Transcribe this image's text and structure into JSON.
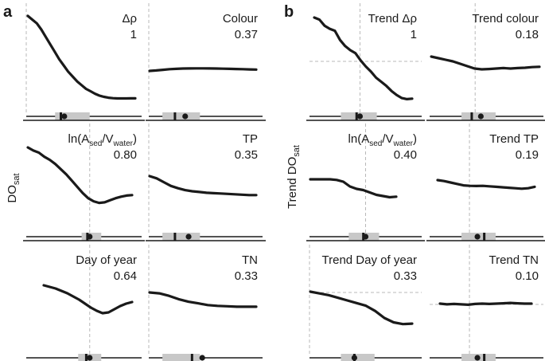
{
  "chart_data": {
    "type": "line",
    "panels": [
      {
        "label": "a",
        "ylabel_main": "DO",
        "ylabel_sub": "sat",
        "ylabel_pre": "",
        "subplots": [
          {
            "id": "a1",
            "title_main": "Δρ",
            "value": "1",
            "curve": [
              0,
              -0.3,
              -0.6,
              -1.1,
              -1.7,
              -2.3,
              -2.9,
              -3.5,
              -4.0,
              -4.5,
              -4.9,
              -5.3,
              -5.6,
              -5.9,
              -6.1,
              -6.3,
              -6.45,
              -6.55,
              -6.62,
              -6.66,
              -6.68,
              -6.68,
              -6.68,
              -6.67,
              -6.67
            ],
            "vguide": 0.0,
            "hguide": null,
            "box": [
              0.25,
              0.55
            ],
            "median": 0.3,
            "mean": 0.33
          },
          {
            "id": "a2",
            "title_main": "Colour",
            "value": "0.37",
            "curve": [
              0,
              0.05,
              0.12,
              0.18,
              0.22,
              0.25,
              0.26,
              0.27,
              0.27,
              0.26,
              0.25,
              0.23,
              0.22,
              0.2,
              0.18,
              0.16,
              0.14
            ],
            "vguide": 0.0,
            "hguide": null,
            "box": [
              0.12,
              0.45
            ],
            "median": 0.23,
            "mean": 0.32
          },
          {
            "id": "a3",
            "title_main": "ln(A",
            "sub1": "sed",
            "mid": "/V",
            "sub2": "water",
            "close": ")",
            "value": "0.80",
            "curve": [
              0,
              -0.3,
              -0.5,
              -0.9,
              -1.2,
              -1.6,
              -2.1,
              -2.6,
              -3.2,
              -3.8,
              -4.4,
              -4.9,
              -5.2,
              -5.35,
              -5.3,
              -5.1,
              -4.9,
              -4.75,
              -4.65,
              -4.6
            ],
            "vguide": 0.55,
            "hguide": null,
            "box": [
              0.48,
              0.65
            ],
            "median": 0.53,
            "mean": 0.55
          },
          {
            "id": "a4",
            "title_main": "TP",
            "value": "0.35",
            "curve": [
              0,
              -0.3,
              -0.8,
              -1.3,
              -1.6,
              -1.85,
              -2.0,
              -2.1,
              -2.2,
              -2.25,
              -2.3,
              -2.35,
              -2.4,
              -2.45,
              -2.5,
              -2.5
            ],
            "vguide": 0.0,
            "hguide": null,
            "box": [
              0.12,
              0.45
            ],
            "median": 0.23,
            "mean": 0.35
          },
          {
            "id": "a5",
            "title_main": "Day of year",
            "value": "0.64",
            "curve": [
              0,
              -0.2,
              -0.4,
              -0.7,
              -1.0,
              -1.4,
              -1.8,
              -2.3,
              -2.8,
              -3.2,
              -3.5,
              -3.4,
              -3.0,
              -2.6,
              -2.3,
              -2.1
            ],
            "vguide": 0.55,
            "hguide": null,
            "box": [
              0.45,
              0.65
            ],
            "median": 0.52,
            "mean": 0.55
          },
          {
            "id": "a6",
            "title_main": "TN",
            "value": "0.33",
            "curve": [
              0,
              -0.1,
              -0.4,
              -0.8,
              -1.1,
              -1.3,
              -1.5,
              -1.6,
              -1.65,
              -1.7,
              -1.7,
              -1.7
            ],
            "vguide": 0.0,
            "hguide": null,
            "box": [
              0.12,
              0.45
            ],
            "median": 0.38,
            "mean": 0.47
          }
        ]
      },
      {
        "label": "b",
        "ylabel_main": "Trend DO",
        "ylabel_sub": "sat",
        "ylabel_pre": "",
        "subplots": [
          {
            "id": "b1",
            "title_main": "Trend Δρ",
            "value": "1",
            "curve": [
              0,
              -0.2,
              -0.8,
              -1.1,
              -1.3,
              -2.2,
              -2.8,
              -3.2,
              -3.5,
              -4.2,
              -4.8,
              -5.3,
              -5.9,
              -6.3,
              -6.7,
              -7.2,
              -7.6,
              -7.9,
              -8.0,
              -7.95
            ],
            "vguide": 0.45,
            "hguide": 0.45,
            "box": [
              0.28,
              0.6
            ],
            "median": 0.42,
            "mean": 0.45
          },
          {
            "id": "b2",
            "title_main": "Trend colour",
            "value": "0.18",
            "curve": [
              0,
              -0.1,
              -0.2,
              -0.3,
              -0.45,
              -0.6,
              -0.75,
              -0.8,
              -0.78,
              -0.75,
              -0.72,
              -0.75,
              -0.72,
              -0.7,
              -0.66,
              -0.64
            ],
            "vguide": 0.4,
            "hguide": null,
            "box": [
              0.28,
              0.58
            ],
            "median": 0.37,
            "mean": 0.45
          },
          {
            "id": "b3",
            "title_main": "ln(A",
            "sub1": "sed",
            "mid": "/V",
            "sub2": "water",
            "close": ")",
            "value": "0.40",
            "curve": [
              0,
              0,
              0,
              0,
              -0.05,
              -0.2,
              -0.6,
              -0.8,
              -0.9,
              -1.1,
              -1.3,
              -1.4,
              -1.5,
              -1.45
            ],
            "vguide": 0.5,
            "hguide": null,
            "box": [
              0.35,
              0.62
            ],
            "median": 0.48,
            "mean": 0.5
          },
          {
            "id": "b4",
            "title_main": "Trend TP",
            "value": "0.19",
            "curve": [
              0,
              -0.1,
              -0.25,
              -0.4,
              -0.55,
              -0.6,
              -0.62,
              -0.6,
              -0.65,
              -0.7,
              -0.75,
              -0.8,
              -0.85,
              -0.9,
              -0.85,
              -0.7
            ],
            "vguide": 0.35,
            "hguide": null,
            "box": [
              0.28,
              0.58
            ],
            "median": 0.48,
            "mean": 0.42
          },
          {
            "id": "b5",
            "title_main": "Trend Day of year",
            "value": "0.33",
            "curve": [
              0,
              -0.2,
              -0.4,
              -0.7,
              -1.0,
              -1.3,
              -1.6,
              -2.2,
              -3.0,
              -3.5,
              -3.7,
              -3.65
            ],
            "vguide": 0.0,
            "hguide": 0.0,
            "box": [
              0.28,
              0.58
            ],
            "median": 0.4,
            "mean": 0.4
          },
          {
            "id": "b6",
            "title_main": "Trend TN",
            "value": "0.10",
            "curve": [
              0,
              -0.1,
              -0.05,
              -0.1,
              -0.15,
              -0.05,
              0.0,
              -0.05,
              0.0,
              0.05,
              0.1,
              0.05,
              0.0,
              0.0
            ],
            "vguide": 0.35,
            "hguide": 0.0,
            "box": [
              0.28,
              0.58
            ],
            "median": 0.48,
            "mean": 0.42
          }
        ]
      }
    ]
  }
}
